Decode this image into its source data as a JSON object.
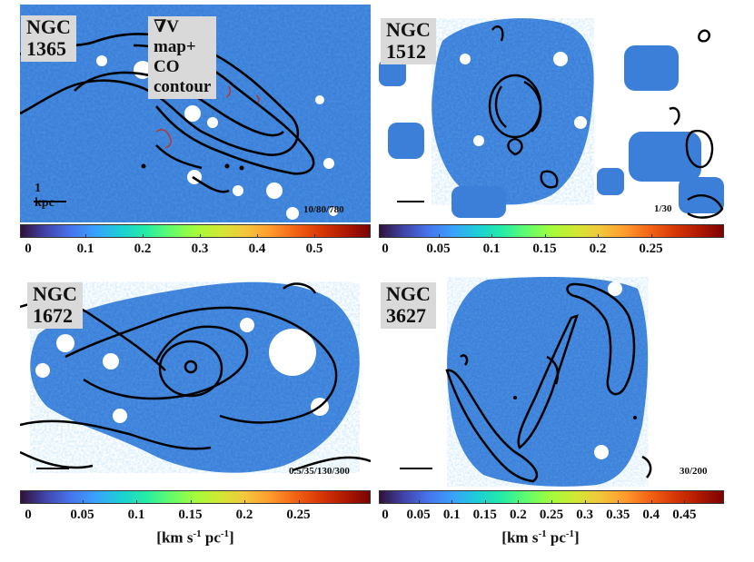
{
  "colormap": [
    "#30123b",
    "#4145ab",
    "#4675ed",
    "#39a2fc",
    "#1bcfd4",
    "#24eca6",
    "#61fc6c",
    "#a4fc3b",
    "#d1e834",
    "#f3c63a",
    "#fe9b2d",
    "#f36315",
    "#d93806",
    "#b11901",
    "#7a0402"
  ],
  "contour_color": "#000000",
  "unit_label": {
    "main": "[km s",
    "sup1": "-1",
    "mid": " pc",
    "sup2": "-1",
    "end": "]"
  },
  "panels": [
    {
      "name": "NGC 1365",
      "subtitle": "∇V map+ CO contour",
      "contour_levels": "10/80/780",
      "scale_label": "1 kpc",
      "ticks": [
        "0",
        "0.1",
        "0.2",
        "0.3",
        "0.4",
        "0.5"
      ]
    },
    {
      "name": "NGC 1512",
      "contour_levels": "1/30",
      "ticks": [
        "0",
        "0.05",
        "0.1",
        "0.15",
        "0.2",
        "0.25"
      ]
    },
    {
      "name": "NGC 1672",
      "contour_levels": "0.5/35/130/300",
      "ticks": [
        "0",
        "0.05",
        "0.1",
        "0.15",
        "0.2",
        "0.25"
      ]
    },
    {
      "name": "NGC 3627",
      "contour_levels": "30/200",
      "ticks": [
        "0",
        "0.05",
        "0.1",
        "0.15",
        "0.2",
        "0.25",
        "0.3",
        "0.35",
        "0.4",
        "0.45"
      ]
    }
  ]
}
